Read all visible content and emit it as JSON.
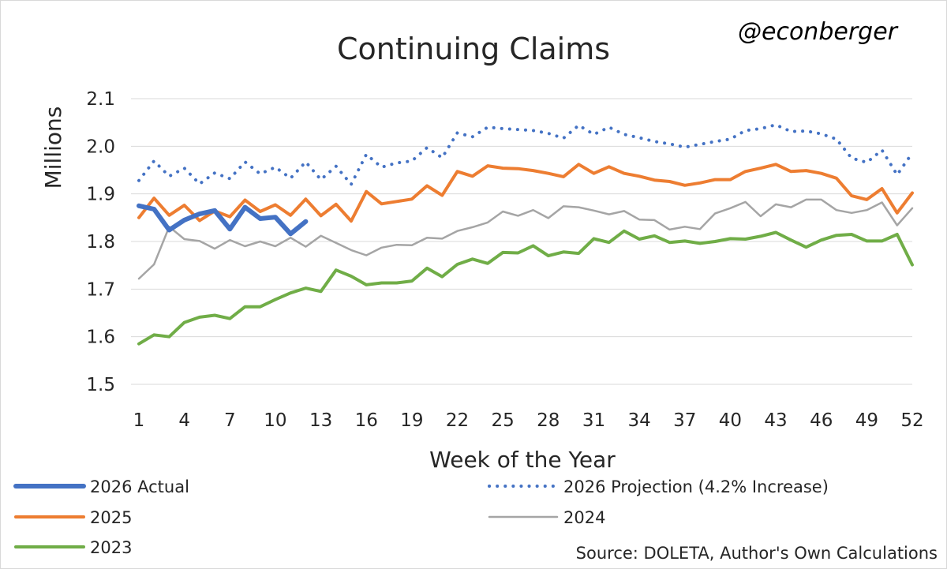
{
  "chart_data": {
    "type": "line",
    "title": "Continuing Claims",
    "handle": "@econberger",
    "xlabel": "Week of the Year",
    "ylabel": "Millions",
    "source": "Source: DOLETA, Author's Own Calculations",
    "xlim": [
      1,
      52
    ],
    "ylim": [
      1.5,
      2.1
    ],
    "x_ticks": [
      1,
      4,
      7,
      10,
      13,
      16,
      19,
      22,
      25,
      28,
      31,
      34,
      37,
      40,
      43,
      46,
      49,
      52
    ],
    "y_ticks": [
      1.5,
      1.6,
      1.7,
      1.8,
      1.9,
      2.0,
      2.1
    ],
    "y_tick_labels": [
      "1.5",
      "1.6",
      "1.7",
      "1.8",
      "1.9",
      "2.0",
      "2.1"
    ],
    "grid": true,
    "legend_position": "bottom",
    "series": [
      {
        "name": "2026 Actual",
        "color": "#4472C4",
        "style": "solid",
        "weight": "thick",
        "x": [
          1,
          2,
          3,
          4,
          5,
          6,
          7,
          8,
          9,
          10,
          11,
          12
        ],
        "values": [
          1.875,
          1.868,
          1.824,
          1.845,
          1.858,
          1.865,
          1.826,
          1.872,
          1.848,
          1.851,
          1.816,
          1.842
        ]
      },
      {
        "name": "2026 Projection (4.2% Increase)",
        "color": "#4472C4",
        "style": "dotted",
        "x": [
          1,
          2,
          3,
          4,
          5,
          6,
          7,
          8,
          9,
          10,
          11,
          12,
          13,
          14,
          15,
          16,
          17,
          18,
          19,
          20,
          21,
          22,
          23,
          24,
          25,
          26,
          27,
          28,
          29,
          30,
          31,
          32,
          33,
          34,
          35,
          36,
          37,
          38,
          39,
          40,
          41,
          42,
          43,
          44,
          45,
          46,
          47,
          48,
          49,
          50,
          51,
          52
        ],
        "values": [
          1.928,
          1.969,
          1.937,
          1.954,
          1.921,
          1.944,
          1.932,
          1.967,
          1.942,
          1.956,
          1.933,
          1.967,
          1.93,
          1.958,
          1.92,
          1.983,
          1.956,
          1.965,
          1.969,
          1.997,
          1.976,
          2.028,
          2.02,
          2.04,
          2.037,
          2.035,
          2.033,
          2.027,
          2.017,
          2.044,
          2.025,
          2.04,
          2.025,
          2.018,
          2.01,
          2.005,
          1.998,
          2.004,
          2.01,
          2.015,
          2.033,
          2.037,
          2.045,
          2.031,
          2.032,
          2.026,
          2.015,
          1.975,
          1.966,
          1.992,
          1.94,
          1.986
        ]
      },
      {
        "name": "2025",
        "color": "#ED7D31",
        "style": "solid",
        "x": [
          1,
          2,
          3,
          4,
          5,
          6,
          7,
          8,
          9,
          10,
          11,
          12,
          13,
          14,
          15,
          16,
          17,
          18,
          19,
          20,
          21,
          22,
          23,
          24,
          25,
          26,
          27,
          28,
          29,
          30,
          31,
          32,
          33,
          34,
          35,
          36,
          37,
          38,
          39,
          40,
          41,
          42,
          43,
          44,
          45,
          46,
          47,
          48,
          49,
          50,
          51,
          52
        ],
        "values": [
          1.85,
          1.891,
          1.855,
          1.876,
          1.844,
          1.864,
          1.852,
          1.887,
          1.863,
          1.877,
          1.855,
          1.889,
          1.854,
          1.878,
          1.843,
          1.905,
          1.879,
          1.884,
          1.889,
          1.917,
          1.897,
          1.947,
          1.937,
          1.959,
          1.954,
          1.953,
          1.949,
          1.943,
          1.936,
          1.962,
          1.943,
          1.957,
          1.943,
          1.937,
          1.929,
          1.926,
          1.918,
          1.923,
          1.93,
          1.93,
          1.947,
          1.954,
          1.962,
          1.947,
          1.949,
          1.943,
          1.933,
          1.896,
          1.888,
          1.911,
          1.86,
          1.902
        ]
      },
      {
        "name": "2024",
        "color": "#A5A5A5",
        "style": "solid",
        "x": [
          1,
          2,
          3,
          4,
          5,
          6,
          7,
          8,
          9,
          10,
          11,
          12,
          13,
          14,
          15,
          16,
          17,
          18,
          19,
          20,
          21,
          22,
          23,
          24,
          25,
          26,
          27,
          28,
          29,
          30,
          31,
          32,
          33,
          34,
          35,
          36,
          37,
          38,
          39,
          40,
          41,
          42,
          43,
          44,
          45,
          46,
          47,
          48,
          49,
          50,
          51,
          52
        ],
        "values": [
          1.722,
          1.752,
          1.831,
          1.805,
          1.801,
          1.785,
          1.803,
          1.79,
          1.8,
          1.79,
          1.808,
          1.789,
          1.812,
          1.797,
          1.782,
          1.771,
          1.787,
          1.793,
          1.792,
          1.808,
          1.806,
          1.822,
          1.83,
          1.84,
          1.863,
          1.854,
          1.866,
          1.849,
          1.874,
          1.872,
          1.865,
          1.857,
          1.864,
          1.846,
          1.845,
          1.825,
          1.831,
          1.826,
          1.859,
          1.87,
          1.883,
          1.853,
          1.878,
          1.872,
          1.888,
          1.888,
          1.866,
          1.86,
          1.866,
          1.882,
          1.834,
          1.87
        ]
      },
      {
        "name": "2023",
        "color": "#70AD47",
        "style": "solid",
        "x": [
          1,
          2,
          3,
          4,
          5,
          6,
          7,
          8,
          9,
          10,
          11,
          12,
          13,
          14,
          15,
          16,
          17,
          18,
          19,
          20,
          21,
          22,
          23,
          24,
          25,
          26,
          27,
          28,
          29,
          30,
          31,
          32,
          33,
          34,
          35,
          36,
          37,
          38,
          39,
          40,
          41,
          42,
          43,
          44,
          45,
          46,
          47,
          48,
          49,
          50,
          51,
          52
        ],
        "values": [
          1.585,
          1.604,
          1.6,
          1.63,
          1.641,
          1.645,
          1.638,
          1.663,
          1.663,
          1.678,
          1.692,
          1.702,
          1.695,
          1.74,
          1.727,
          1.709,
          1.713,
          1.713,
          1.717,
          1.744,
          1.726,
          1.752,
          1.763,
          1.754,
          1.777,
          1.776,
          1.791,
          1.77,
          1.778,
          1.775,
          1.806,
          1.798,
          1.822,
          1.805,
          1.812,
          1.798,
          1.801,
          1.796,
          1.8,
          1.806,
          1.805,
          1.811,
          1.819,
          1.803,
          1.788,
          1.803,
          1.813,
          1.815,
          1.801,
          1.801,
          1.815,
          1.751
        ]
      }
    ],
    "legend_order": [
      "2026 Actual",
      "2026 Projection (4.2% Increase)",
      "2025",
      "2024",
      "2023"
    ]
  }
}
